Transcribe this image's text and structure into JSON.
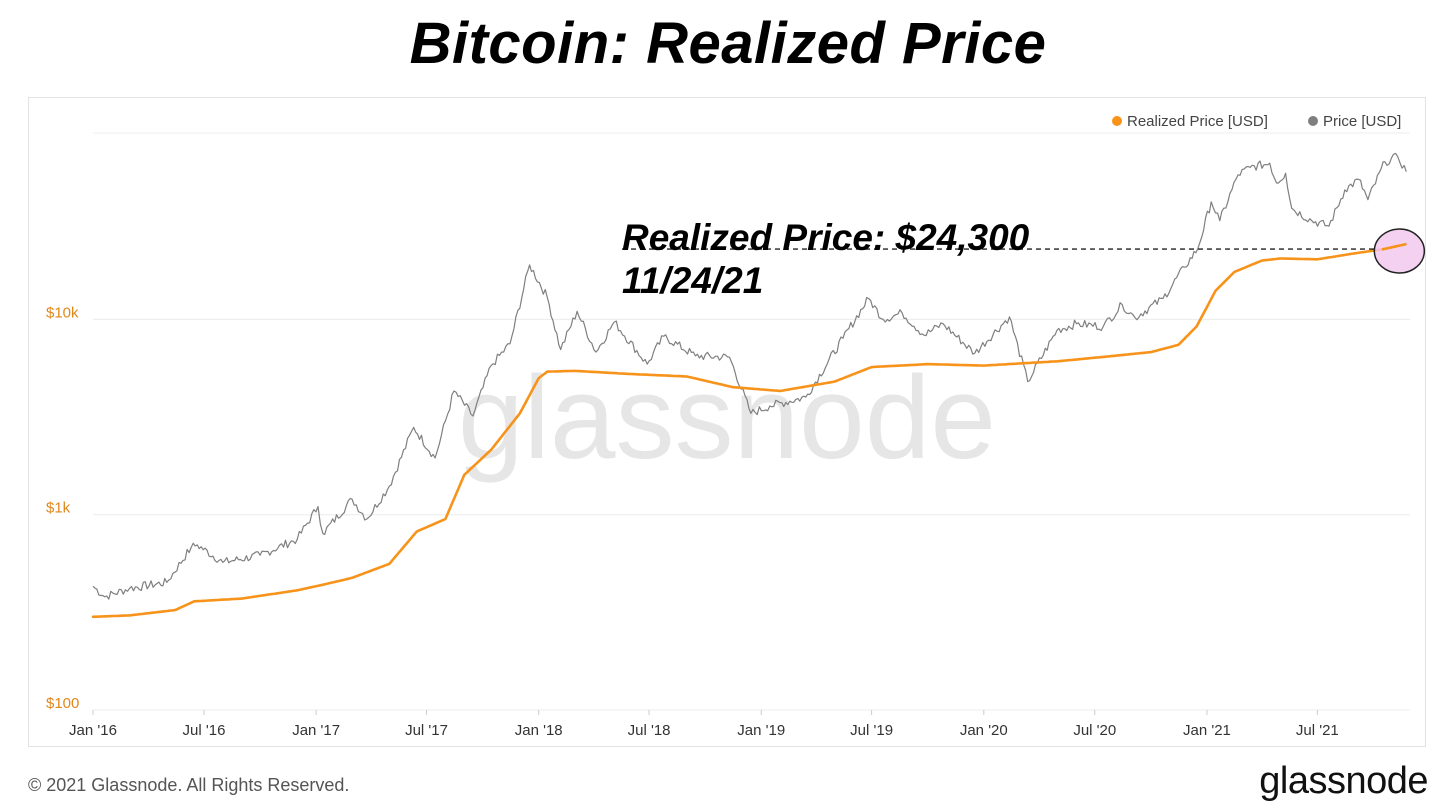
{
  "title": "Bitcoin: Realized Price",
  "footer": {
    "copyright": "© 2021 Glassnode. All Rights Reserved.",
    "logo": "glassnode"
  },
  "watermark": "glassnode",
  "colors": {
    "realized": "#f7931a",
    "price": "#7f7f7f",
    "grid": "#ececec",
    "ytick": "#e0871c",
    "xtick": "#333333",
    "highlight_fill": "#f2c8ee",
    "highlight_stroke": "#222222"
  },
  "annotation": {
    "line1": "Realized Price: $24,300",
    "line2": "11/24/21"
  },
  "chart_data": {
    "type": "line",
    "yscale": "log",
    "ylim": [
      100,
      90000
    ],
    "xlim": [
      "2016-01-01",
      "2021-11-30"
    ],
    "grid": true,
    "legend_position": "top-right",
    "yticks": [
      {
        "value": 100,
        "label": "$100"
      },
      {
        "value": 1000,
        "label": "$1k"
      },
      {
        "value": 10000,
        "label": "$10k"
      }
    ],
    "xticks": [
      {
        "date": "2016-01-01",
        "label": "Jan '16"
      },
      {
        "date": "2016-07-01",
        "label": "Jul '16"
      },
      {
        "date": "2017-01-01",
        "label": "Jan '17"
      },
      {
        "date": "2017-07-01",
        "label": "Jul '17"
      },
      {
        "date": "2018-01-01",
        "label": "Jan '18"
      },
      {
        "date": "2018-07-01",
        "label": "Jul '18"
      },
      {
        "date": "2019-01-01",
        "label": "Jan '19"
      },
      {
        "date": "2019-07-01",
        "label": "Jul '19"
      },
      {
        "date": "2020-01-01",
        "label": "Jan '20"
      },
      {
        "date": "2020-07-01",
        "label": "Jul '20"
      },
      {
        "date": "2021-01-01",
        "label": "Jan '21"
      },
      {
        "date": "2021-07-01",
        "label": "Jul '21"
      }
    ],
    "series": [
      {
        "name": "Realized Price [USD]",
        "color": "#f7931a",
        "points": [
          [
            "2016-01-01",
            300
          ],
          [
            "2016-03-01",
            305
          ],
          [
            "2016-05-15",
            325
          ],
          [
            "2016-06-15",
            360
          ],
          [
            "2016-09-01",
            372
          ],
          [
            "2016-12-01",
            410
          ],
          [
            "2017-01-15",
            440
          ],
          [
            "2017-03-01",
            475
          ],
          [
            "2017-05-01",
            560
          ],
          [
            "2017-06-15",
            820
          ],
          [
            "2017-08-01",
            950
          ],
          [
            "2017-09-01",
            1600
          ],
          [
            "2017-10-15",
            2150
          ],
          [
            "2017-12-01",
            3300
          ],
          [
            "2018-01-01",
            5000
          ],
          [
            "2018-01-15",
            5400
          ],
          [
            "2018-03-01",
            5450
          ],
          [
            "2018-06-01",
            5250
          ],
          [
            "2018-09-01",
            5100
          ],
          [
            "2018-11-15",
            4500
          ],
          [
            "2019-02-01",
            4300
          ],
          [
            "2019-05-01",
            4800
          ],
          [
            "2019-07-01",
            5700
          ],
          [
            "2019-10-01",
            5900
          ],
          [
            "2020-01-01",
            5800
          ],
          [
            "2020-03-01",
            5950
          ],
          [
            "2020-05-01",
            6100
          ],
          [
            "2020-08-01",
            6500
          ],
          [
            "2020-10-01",
            6800
          ],
          [
            "2020-11-15",
            7400
          ],
          [
            "2020-12-15",
            9200
          ],
          [
            "2021-01-15",
            14000
          ],
          [
            "2021-02-15",
            17500
          ],
          [
            "2021-04-01",
            20000
          ],
          [
            "2021-05-01",
            20500
          ],
          [
            "2021-07-01",
            20300
          ],
          [
            "2021-09-01",
            21800
          ],
          [
            "2021-10-15",
            22800
          ],
          [
            "2021-11-24",
            24300
          ]
        ]
      },
      {
        "name": "Price [USD]",
        "color": "#7f7f7f",
        "points": [
          [
            "2016-01-01",
            430
          ],
          [
            "2016-01-20",
            380
          ],
          [
            "2016-03-01",
            420
          ],
          [
            "2016-05-01",
            450
          ],
          [
            "2016-06-10",
            680
          ],
          [
            "2016-06-20",
            700
          ],
          [
            "2016-08-01",
            570
          ],
          [
            "2016-10-01",
            620
          ],
          [
            "2016-12-01",
            750
          ],
          [
            "2017-01-04",
            1100
          ],
          [
            "2017-01-12",
            800
          ],
          [
            "2017-03-01",
            1200
          ],
          [
            "2017-03-25",
            950
          ],
          [
            "2017-05-01",
            1400
          ],
          [
            "2017-06-10",
            2800
          ],
          [
            "2017-07-15",
            1950
          ],
          [
            "2017-08-15",
            4300
          ],
          [
            "2017-09-15",
            3200
          ],
          [
            "2017-10-15",
            5800
          ],
          [
            "2017-11-15",
            7500
          ],
          [
            "2017-12-17",
            19000
          ],
          [
            "2018-01-15",
            13000
          ],
          [
            "2018-02-06",
            7000
          ],
          [
            "2018-03-05",
            11000
          ],
          [
            "2018-04-05",
            6800
          ],
          [
            "2018-05-05",
            9700
          ],
          [
            "2018-06-28",
            5900
          ],
          [
            "2018-07-25",
            8200
          ],
          [
            "2018-09-15",
            6500
          ],
          [
            "2018-11-10",
            6400
          ],
          [
            "2018-12-15",
            3300
          ],
          [
            "2019-01-15",
            3600
          ],
          [
            "2019-03-15",
            4000
          ],
          [
            "2019-05-15",
            8000
          ],
          [
            "2019-06-26",
            12800
          ],
          [
            "2019-07-20",
            10000
          ],
          [
            "2019-08-20",
            10800
          ],
          [
            "2019-09-25",
            8300
          ],
          [
            "2019-10-26",
            9500
          ],
          [
            "2019-12-17",
            6700
          ],
          [
            "2020-02-12",
            10300
          ],
          [
            "2020-03-13",
            4800
          ],
          [
            "2020-04-30",
            8800
          ],
          [
            "2020-06-01",
            9500
          ],
          [
            "2020-07-15",
            9200
          ],
          [
            "2020-08-15",
            11900
          ],
          [
            "2020-09-05",
            10200
          ],
          [
            "2020-10-21",
            12800
          ],
          [
            "2020-11-25",
            18500
          ],
          [
            "2020-12-17",
            23000
          ],
          [
            "2021-01-08",
            40000
          ],
          [
            "2021-01-22",
            32000
          ],
          [
            "2021-02-21",
            55000
          ],
          [
            "2021-03-13",
            60000
          ],
          [
            "2021-04-14",
            63000
          ],
          [
            "2021-04-25",
            50000
          ],
          [
            "2021-05-10",
            56000
          ],
          [
            "2021-05-20",
            37000
          ],
          [
            "2021-06-22",
            32000
          ],
          [
            "2021-07-20",
            30000
          ],
          [
            "2021-08-15",
            46000
          ],
          [
            "2021-09-07",
            52000
          ],
          [
            "2021-09-22",
            41000
          ],
          [
            "2021-10-20",
            64000
          ],
          [
            "2021-11-10",
            68000
          ],
          [
            "2021-11-24",
            57000
          ]
        ]
      }
    ],
    "annotation": {
      "date": "2021-11-24",
      "value": 24300
    }
  }
}
